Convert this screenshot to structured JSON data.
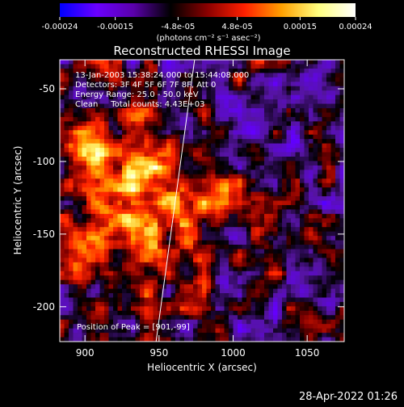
{
  "chart_data": {
    "type": "heatmap",
    "title": "Reconstructed RHESSI Image",
    "xlabel": "Heliocentric X (arcsec)",
    "ylabel": "Heliocentric Y (arcsec)",
    "xlim": [
      883,
      1075
    ],
    "ylim": [
      -224,
      -30
    ],
    "x_ticks": [
      900,
      950,
      1000,
      1050
    ],
    "y_ticks": [
      -50,
      -100,
      -150,
      -200
    ],
    "x_tick_labels": [
      "900",
      "950",
      "1000",
      "1050"
    ],
    "y_tick_labels": [
      "-50",
      "-100",
      "-150",
      "-200"
    ],
    "colorbar": {
      "range": [
        -0.00024,
        0.00024
      ],
      "ticks": [
        -0.00024,
        -0.00015,
        -4.8e-05,
        4.8e-05,
        0.00015,
        0.00024
      ],
      "tick_labels": [
        "-0.00024",
        "-0.00015",
        "-4.8e-05",
        "4.8e-05",
        "0.00015",
        "0.00024"
      ],
      "units_label": "(photons cm⁻² s⁻¹ asec⁻²)",
      "colors": [
        "#0000ff",
        "#6a00ff",
        "#5a00aa",
        "#000000",
        "#8b0000",
        "#ff2000",
        "#ffa000",
        "#ffff80",
        "#ffffff"
      ]
    },
    "info_lines": [
      "13-Jan-2003 15:38:24.000 to 15:44:08.000",
      "Detectors: 3F 4F 5F 6F 7F 8F, Att 0",
      "Energy Range: 25.0 - 50.0 keV",
      "Clean     Total counts: 4.43E+03"
    ],
    "peak_label": "Position of Peak = [901,-99]",
    "limb_line": [
      [
        948,
        -224
      ],
      [
        974,
        -30
      ]
    ],
    "grid": false
  },
  "footer": {
    "timestamp": "28-Apr-2022 01:26"
  }
}
